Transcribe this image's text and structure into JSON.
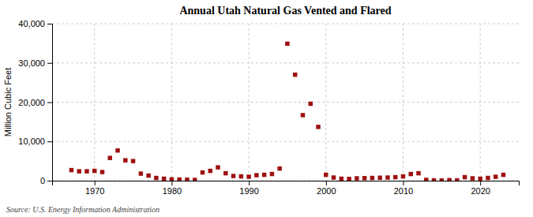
{
  "chart_data": {
    "type": "scatter",
    "title": "Annual Utah Natural Gas Vented and Flared",
    "y_label": "Million Cubic Feet",
    "annotation": "Source: U.S. Energy Information Administration",
    "color": "#9e1010",
    "marker": "square",
    "grid": true,
    "x": [
      1967,
      1968,
      1969,
      1970,
      1971,
      1972,
      1973,
      1974,
      1975,
      1976,
      1977,
      1978,
      1979,
      1980,
      1981,
      1982,
      1983,
      1984,
      1985,
      1986,
      1987,
      1988,
      1989,
      1990,
      1991,
      1992,
      1993,
      1994,
      1995,
      1996,
      1997,
      1998,
      1999,
      2000,
      2001,
      2002,
      2003,
      2004,
      2005,
      2006,
      2007,
      2008,
      2009,
      2010,
      2011,
      2012,
      2013,
      2014,
      2015,
      2016,
      2017,
      2018,
      2019,
      2020,
      2021,
      2022,
      2023
    ],
    "values": [
      2700,
      2400,
      2400,
      2500,
      2200,
      5800,
      7700,
      5200,
      5000,
      1800,
      1300,
      700,
      500,
      350,
      300,
      250,
      200,
      2100,
      2500,
      3400,
      1900,
      1200,
      1100,
      1000,
      1400,
      1500,
      1700,
      3100,
      34900,
      27000,
      16700,
      19600,
      13700,
      1500,
      800,
      500,
      450,
      600,
      650,
      700,
      750,
      800,
      900,
      1100,
      1700,
      1900,
      200,
      100,
      50,
      150,
      100,
      900,
      600,
      500,
      700,
      1000,
      1500
    ],
    "xlim": [
      1964.5,
      2025
    ],
    "xticks": [
      1970,
      1980,
      1990,
      2000,
      2010,
      2020
    ],
    "ylim": [
      0,
      40000
    ],
    "yticks": [
      0,
      {
        "value": 10000,
        "label": "10,000"
      },
      {
        "value": 20000,
        "label": "20,000"
      },
      {
        "value": 30000,
        "label": "30,000"
      },
      {
        "value": 40000,
        "label": "40,000"
      }
    ]
  }
}
